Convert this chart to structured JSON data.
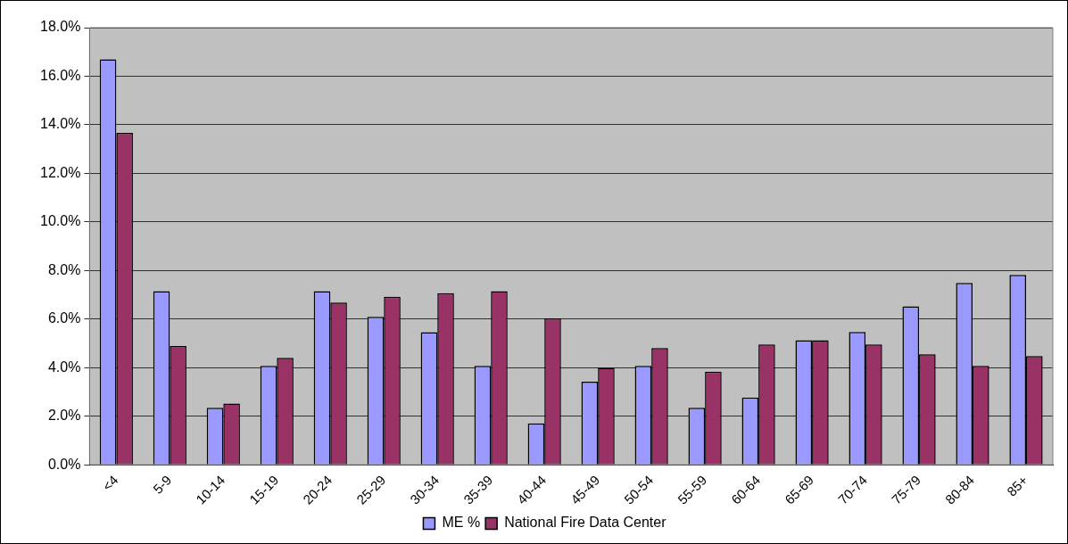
{
  "chart_data": {
    "type": "bar",
    "categories": [
      "<4",
      "5-9",
      "10-14",
      "15-19",
      "20-24",
      "25-29",
      "30-34",
      "35-39",
      "40-44",
      "45-49",
      "50-54",
      "55-59",
      "60-64",
      "65-69",
      "70-74",
      "75-79",
      "80-84",
      "85+"
    ],
    "series": [
      {
        "name": "ME %",
        "color": "#9999ff",
        "values": [
          16.7,
          7.15,
          2.35,
          4.07,
          7.15,
          6.09,
          5.46,
          4.07,
          1.7,
          3.42,
          4.07,
          2.35,
          2.77,
          5.13,
          5.47,
          6.52,
          7.49,
          7.82
        ]
      },
      {
        "name": "National Fire Data Center",
        "color": "#993366",
        "values": [
          13.67,
          4.89,
          2.52,
          4.4,
          6.68,
          6.92,
          7.07,
          7.15,
          6.03,
          3.99,
          4.81,
          3.83,
          4.95,
          5.13,
          4.95,
          4.55,
          4.07,
          4.48
        ]
      }
    ],
    "ylim": [
      0,
      18
    ],
    "yticks": [
      {
        "value": 0,
        "label": "0.0%"
      },
      {
        "value": 2,
        "label": "2.0%"
      },
      {
        "value": 4,
        "label": "4.0%"
      },
      {
        "value": 6,
        "label": "6.0%"
      },
      {
        "value": 8,
        "label": "8.0%"
      },
      {
        "value": 10,
        "label": "10.0%"
      },
      {
        "value": 12,
        "label": "12.0%"
      },
      {
        "value": 14,
        "label": "14.0%"
      },
      {
        "value": 16,
        "label": "16.0%"
      },
      {
        "value": 18,
        "label": "18.0%"
      }
    ],
    "grid": "y",
    "legend": "bottom"
  }
}
